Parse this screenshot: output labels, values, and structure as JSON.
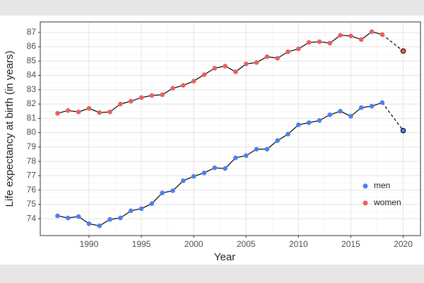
{
  "chart_data": {
    "type": "line",
    "x_label": "Year",
    "y_label": "Life expectancy at birth (in years)",
    "x": [
      1987,
      1988,
      1989,
      1990,
      1991,
      1992,
      1993,
      1994,
      1995,
      1996,
      1997,
      1998,
      1999,
      2000,
      2001,
      2002,
      2003,
      2004,
      2005,
      2006,
      2007,
      2008,
      2009,
      2010,
      2011,
      2012,
      2013,
      2014,
      2015,
      2016,
      2017,
      2018,
      2020
    ],
    "series": [
      {
        "name": "men",
        "color": "#4f7ff0",
        "values": [
          74.2,
          74.05,
          74.15,
          73.65,
          73.5,
          73.95,
          74.05,
          74.55,
          74.7,
          75.05,
          75.8,
          75.95,
          76.65,
          76.95,
          77.2,
          77.55,
          77.5,
          78.25,
          78.4,
          78.85,
          78.85,
          79.45,
          79.9,
          80.55,
          80.7,
          80.85,
          81.25,
          81.5,
          81.15,
          81.75,
          81.85,
          82.1,
          80.15
        ]
      },
      {
        "name": "women",
        "color": "#ec5f5f",
        "values": [
          81.35,
          81.55,
          81.45,
          81.7,
          81.4,
          81.45,
          82.0,
          82.2,
          82.45,
          82.6,
          82.65,
          83.1,
          83.3,
          83.6,
          84.05,
          84.5,
          84.65,
          84.25,
          84.8,
          84.9,
          85.3,
          85.2,
          85.65,
          85.85,
          86.3,
          86.35,
          86.25,
          86.8,
          86.75,
          86.5,
          87.05,
          86.85,
          85.7
        ]
      }
    ],
    "xlim": [
      1985.35,
      2021.65
    ],
    "xticks": [
      1990,
      1995,
      2000,
      2005,
      2010,
      2015,
      2020
    ],
    "ylim": [
      72.82,
      87.73
    ],
    "yticks": [
      74,
      75,
      76,
      77,
      78,
      79,
      80,
      81,
      82,
      83,
      84,
      85,
      86,
      87
    ],
    "grid": true,
    "dashed_last_segment": true,
    "legend_position": "bottom-right"
  }
}
